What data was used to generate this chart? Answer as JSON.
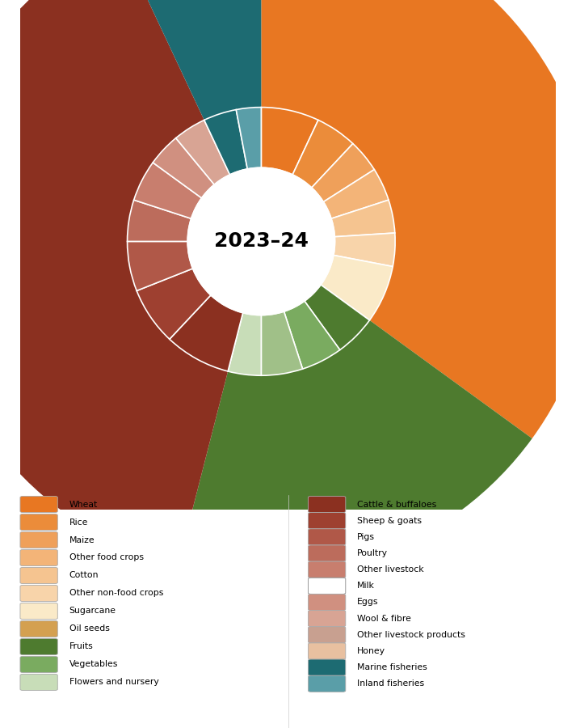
{
  "center_text": "2023–24",
  "background_color": "#ffffff",
  "crops_pct": 35,
  "hort_pct": 19,
  "live_pct": 39,
  "fish_pct": 7,
  "crops_color": "#E87722",
  "hort_color": "#4E7B2F",
  "live_color": "#8B3020",
  "fish_color": "#1D6B72",
  "crops_sub": [
    {
      "value": 7,
      "color": "#E87722"
    },
    {
      "value": 5,
      "color": "#EB8C3A"
    },
    {
      "value": 4,
      "color": "#EFA05A"
    },
    {
      "value": 4,
      "color": "#F3B478"
    },
    {
      "value": 4,
      "color": "#F5C490"
    },
    {
      "value": 4,
      "color": "#F8D4AA"
    },
    {
      "value": 7,
      "color": "#FAEAC8"
    }
  ],
  "hort_sub": [
    {
      "value": 5,
      "color": "#4E7B2F"
    },
    {
      "value": 5,
      "color": "#7AAB60"
    },
    {
      "value": 5,
      "color": "#A0C088"
    },
    {
      "value": 4,
      "color": "#C8DDB8"
    }
  ],
  "live_sub": [
    {
      "value": 8,
      "color": "#8B3020"
    },
    {
      "value": 7,
      "color": "#9E4030"
    },
    {
      "value": 6,
      "color": "#B05848"
    },
    {
      "value": 5,
      "color": "#BC6C5C"
    },
    {
      "value": 5,
      "color": "#C87E6E"
    },
    {
      "value": 4,
      "color": "#D09080"
    },
    {
      "value": 4,
      "color": "#D8A494"
    }
  ],
  "fish_sub": [
    {
      "value": 4,
      "color": "#1D6B72"
    },
    {
      "value": 3,
      "color": "#5A9EA8"
    }
  ],
  "legend_left": [
    {
      "color": "#E87722",
      "label": "Wheat"
    },
    {
      "color": "#EB8C3A",
      "label": "Rice"
    },
    {
      "color": "#EFA05A",
      "label": "Maize"
    },
    {
      "color": "#F3B478",
      "label": "Other food crops"
    },
    {
      "color": "#F5C490",
      "label": "Cotton"
    },
    {
      "color": "#F8D4AA",
      "label": "Other non-food crops"
    },
    {
      "color": "#FAEAC8",
      "label": "Sugarcane"
    },
    {
      "color": "#D4A050",
      "label": "Oil seeds"
    },
    {
      "color": "#4E7B2F",
      "label": "Fruits"
    },
    {
      "color": "#7AAB60",
      "label": "Vegetables"
    },
    {
      "color": "#C8DDB8",
      "label": "Flowers and nursery"
    }
  ],
  "legend_right": [
    {
      "color": "#8B3020",
      "label": "Cattle & buffaloes"
    },
    {
      "color": "#9E4030",
      "label": "Sheep & goats"
    },
    {
      "color": "#B05848",
      "label": "Pigs"
    },
    {
      "color": "#BC6C5C",
      "label": "Poultry"
    },
    {
      "color": "#C87E6E",
      "label": "Other livestock"
    },
    {
      "color": "#ffffff",
      "label": "Milk"
    },
    {
      "color": "#D09080",
      "label": "Eggs"
    },
    {
      "color": "#D8A494",
      "label": "Wool & fibre"
    },
    {
      "color": "#C8A090",
      "label": "Other livestock products"
    },
    {
      "color": "#E8C0A0",
      "label": "Honey"
    },
    {
      "color": "#1D6B72",
      "label": "Marine fisheries"
    },
    {
      "color": "#5A9EA8",
      "label": "Inland fisheries"
    }
  ]
}
